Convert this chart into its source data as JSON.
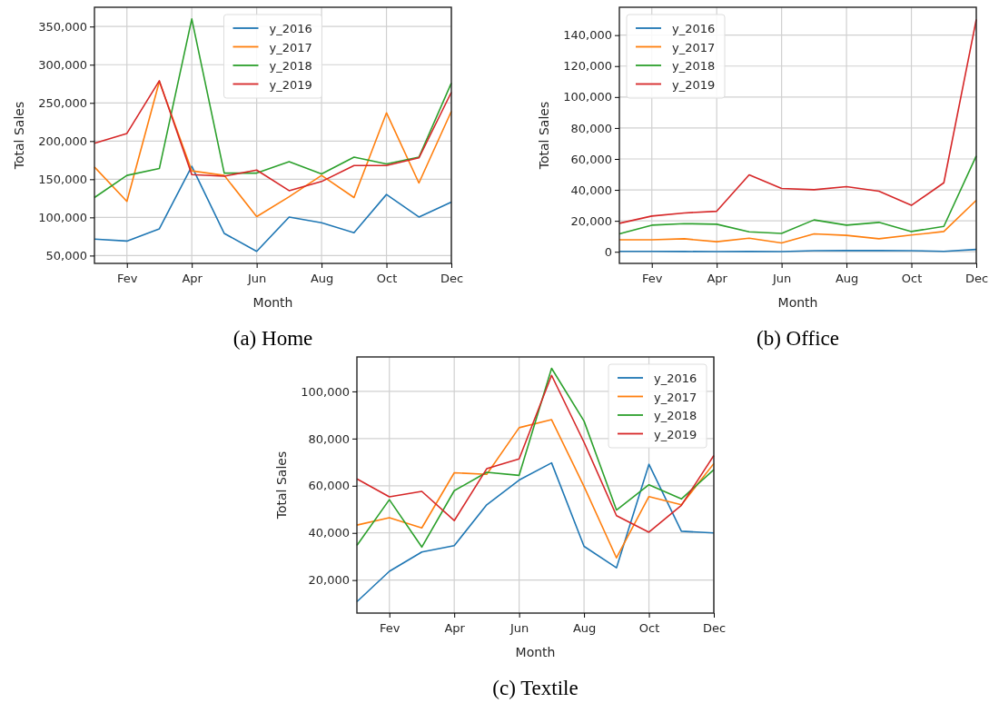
{
  "chart_data": [
    {
      "type": "line",
      "title": "(a) Home",
      "xlabel": "Month",
      "ylabel": "Total Sales",
      "categories": [
        null,
        "Fev",
        null,
        "Apr",
        null,
        "Jun",
        null,
        "Aug",
        null,
        "Oct",
        null,
        "Dec"
      ],
      "ylim": [
        39750,
        375250
      ],
      "yticks": [
        {
          "value": 50000,
          "label": "50,000"
        },
        {
          "value": 100000,
          "label": "100,000"
        },
        {
          "value": 150000,
          "label": "150,000"
        },
        {
          "value": 200000,
          "label": "200,000"
        },
        {
          "value": 250000,
          "label": "250,000"
        },
        {
          "value": 300000,
          "label": "300,000"
        },
        {
          "value": 350000,
          "label": "350,000"
        }
      ],
      "grid": true,
      "legend": "top",
      "series": [
        {
          "name": "y_2016",
          "color": "#1f77b4",
          "values": [
            71500,
            69000,
            85000,
            167000,
            79000,
            55500,
            100500,
            93000,
            80000,
            130000,
            100500,
            120000
          ]
        },
        {
          "name": "y_2017",
          "color": "#ff7f0e",
          "values": [
            166000,
            121000,
            278000,
            161000,
            155000,
            101000,
            127000,
            155000,
            126000,
            237000,
            145000,
            239000
          ]
        },
        {
          "name": "y_2018",
          "color": "#2ca02c",
          "values": [
            126000,
            155000,
            164000,
            360000,
            158000,
            158000,
            173000,
            157000,
            179000,
            170000,
            179000,
            276000
          ]
        },
        {
          "name": "y_2019",
          "color": "#d62728",
          "values": [
            197000,
            210000,
            279000,
            156000,
            154000,
            162000,
            135000,
            147000,
            168000,
            168000,
            178000,
            264000
          ]
        }
      ]
    },
    {
      "type": "line",
      "title": "(b) Office",
      "xlabel": "Month",
      "ylabel": "Total Sales",
      "categories": [
        null,
        "Fev",
        null,
        "Apr",
        null,
        "Jun",
        null,
        "Aug",
        null,
        "Oct",
        null,
        "Dec"
      ],
      "ylim": [
        -7500,
        158000
      ],
      "yticks": [
        0,
        {
          "value": 20000,
          "label": "20,000"
        },
        {
          "value": 40000,
          "label": "40,000"
        },
        {
          "value": 60000,
          "label": "60,000"
        },
        {
          "value": 80000,
          "label": "80,000"
        },
        {
          "value": 100000,
          "label": "100,000"
        },
        {
          "value": 120000,
          "label": "120,000"
        },
        {
          "value": 140000,
          "label": "140,000"
        }
      ],
      "grid": true,
      "legend": "top left",
      "series": [
        {
          "name": "y_2016",
          "color": "#1f77b4",
          "values": [
            300,
            300,
            200,
            100,
            200,
            100,
            700,
            800,
            800,
            700,
            300,
            1500
          ]
        },
        {
          "name": "y_2017",
          "color": "#ff7f0e",
          "values": [
            7800,
            7800,
            8400,
            6500,
            8800,
            5700,
            11600,
            10600,
            8400,
            10800,
            13100,
            33300
          ]
        },
        {
          "name": "y_2018",
          "color": "#2ca02c",
          "values": [
            11600,
            17200,
            18200,
            17800,
            12900,
            11900,
            20600,
            17200,
            19000,
            13100,
            16400,
            62000
          ]
        },
        {
          "name": "y_2019",
          "color": "#d62728",
          "values": [
            18400,
            23100,
            25100,
            26200,
            49700,
            40900,
            40100,
            42100,
            39200,
            30000,
            44600,
            150200
          ]
        }
      ]
    },
    {
      "type": "line",
      "title": "(c) Textile",
      "xlabel": "Month",
      "ylabel": "Total Sales",
      "categories": [
        null,
        "Fev",
        null,
        "Apr",
        null,
        "Jun",
        null,
        "Aug",
        null,
        "Oct",
        null,
        "Dec"
      ],
      "ylim": [
        6000,
        114600
      ],
      "yticks": [
        {
          "value": 20000,
          "label": "20,000"
        },
        {
          "value": 40000,
          "label": "40,000"
        },
        {
          "value": 60000,
          "label": "60,000"
        },
        {
          "value": 80000,
          "label": "80,000"
        },
        {
          "value": 100000,
          "label": "100,000"
        }
      ],
      "grid": true,
      "legend": "top right",
      "series": [
        {
          "name": "y_2016",
          "color": "#1f77b4",
          "values": [
            10800,
            23700,
            31900,
            34600,
            51900,
            62400,
            69700,
            34300,
            25200,
            69100,
            40700,
            40000
          ]
        },
        {
          "name": "y_2017",
          "color": "#ff7f0e",
          "values": [
            43300,
            46400,
            42100,
            65500,
            64800,
            84600,
            88000,
            59700,
            29400,
            55400,
            51900,
            69400
          ]
        },
        {
          "name": "y_2018",
          "color": "#2ca02c",
          "values": [
            34700,
            54100,
            34000,
            57900,
            65700,
            64400,
            109800,
            87400,
            49700,
            60400,
            54400,
            66800
          ]
        },
        {
          "name": "y_2019",
          "color": "#d62728",
          "values": [
            62900,
            55300,
            57600,
            45200,
            67200,
            71400,
            106800,
            78400,
            47300,
            40300,
            51700,
            72800
          ]
        }
      ]
    }
  ]
}
